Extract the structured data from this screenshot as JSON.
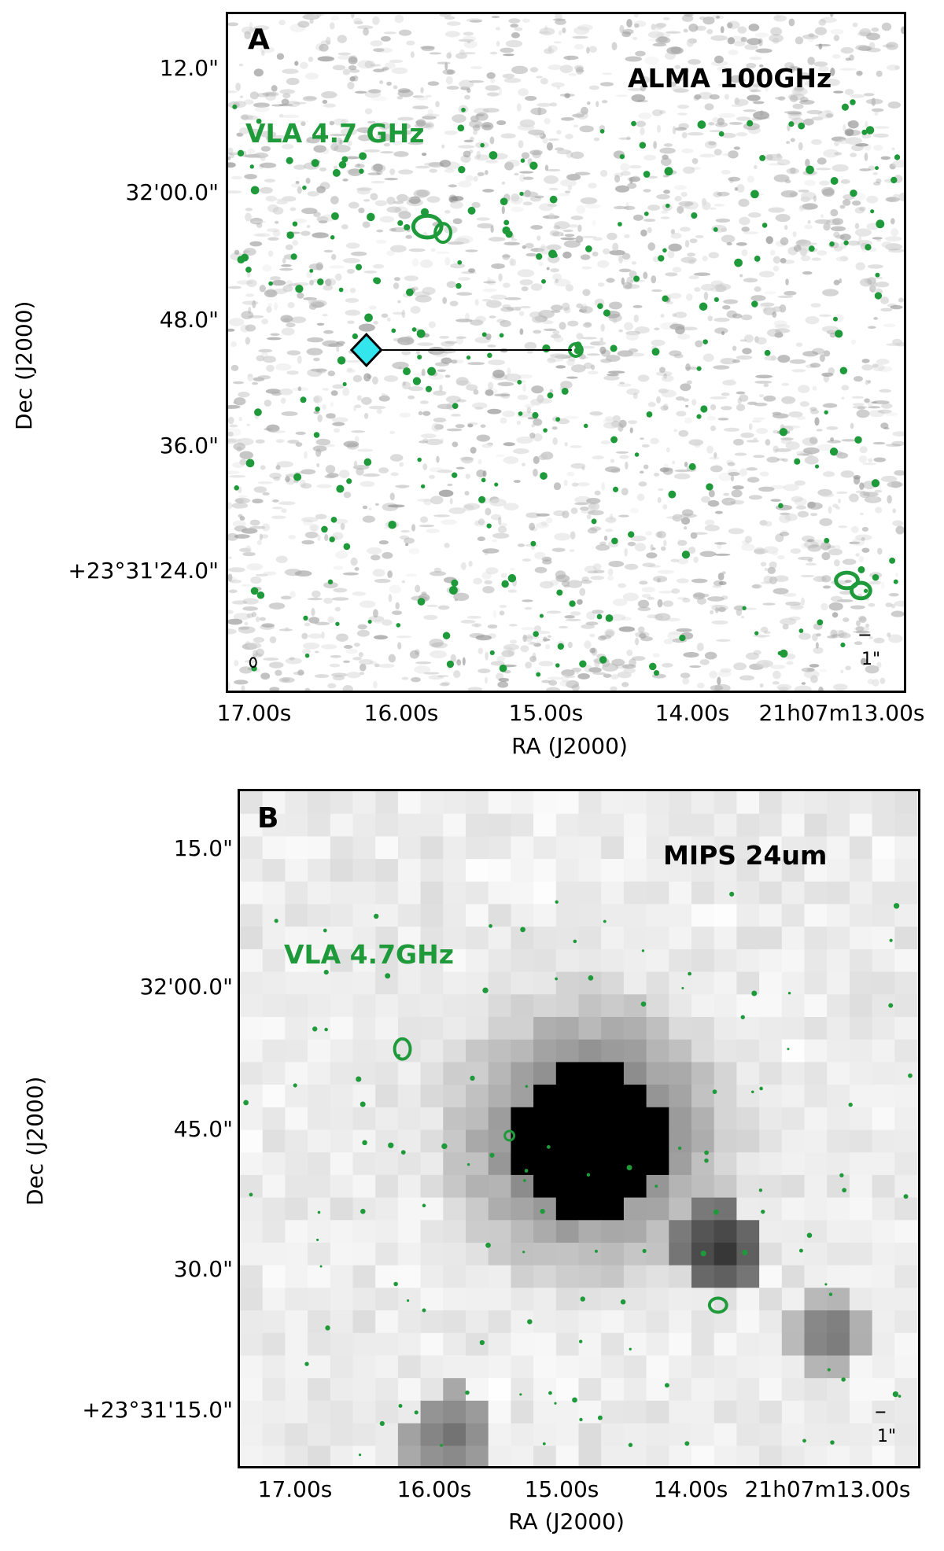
{
  "panel_a": {
    "letter": "A",
    "band": "ALMA 100GHz",
    "overlay": "VLA 4.7 GHz",
    "scale": "1\"",
    "y_ticks": [
      "12.0\"",
      "32'00.0\"",
      "48.0\"",
      "36.0\"",
      "+23°31'24.0\""
    ],
    "x_ticks": [
      "17.00s",
      "16.00s",
      "15.00s",
      "14.00s",
      "21h07m13.00s"
    ],
    "xlabel": "RA (J2000)",
    "ylabel": "Dec (J2000)"
  },
  "panel_b": {
    "letter": "B",
    "band": "MIPS 24um",
    "overlay": "VLA 4.7GHz",
    "scale": "1\"",
    "y_ticks": [
      "15.0\"",
      "32'00.0\"",
      "45.0\"",
      "30.0\"",
      "+23°31'15.0\""
    ],
    "x_ticks": [
      "17.00s",
      "16.00s",
      "15.00s",
      "14.00s",
      "21h07m13.00s"
    ],
    "xlabel": "RA (J2000)",
    "ylabel": "Dec (J2000)"
  },
  "colors": {
    "contour": "#1f9a3a",
    "marker": "#33e6ee",
    "label_green": "#1f9a3a"
  }
}
